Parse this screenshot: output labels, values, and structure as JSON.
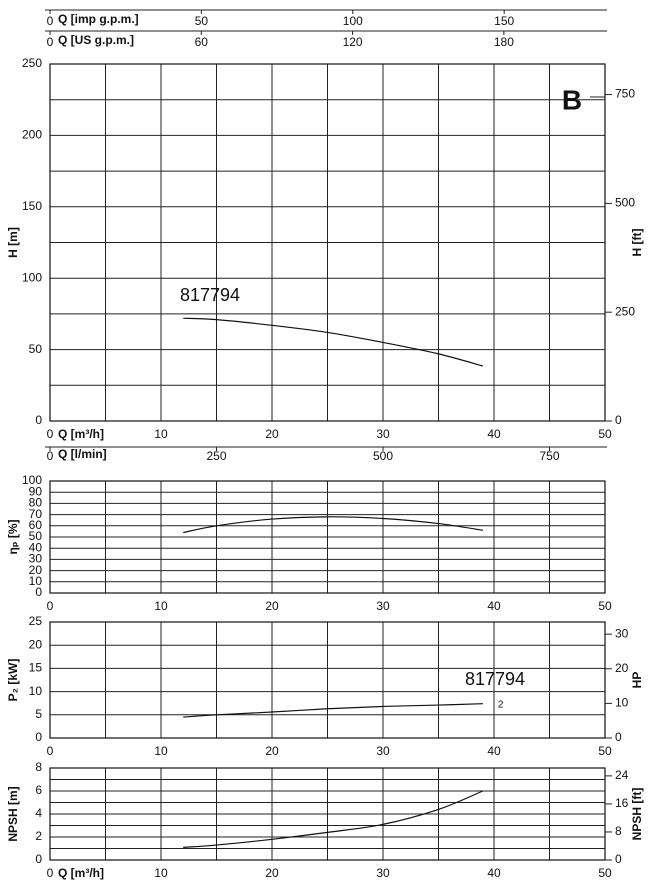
{
  "chart_data": [
    {
      "type": "line",
      "label": "B",
      "ylabel": "H [m]",
      "y2label": "H [ft]",
      "xlabel": "Q [m³/h]",
      "xlim": [
        0,
        50
      ],
      "xticks": [
        0,
        10,
        20,
        30,
        40,
        50
      ],
      "minor_xticks": [
        5,
        15,
        25,
        35,
        45
      ],
      "ylim": [
        0,
        250
      ],
      "yticks": [
        0,
        50,
        100,
        150,
        200,
        250
      ],
      "minor_yticks": [
        25,
        75,
        125,
        175,
        225
      ],
      "y2lim": [
        0,
        820.2
      ],
      "y2ticks": [
        0,
        250,
        500,
        750
      ],
      "grid": true,
      "top_axes": [
        {
          "label": "Q [imp g.p.m.]",
          "xlim": [
            0,
            183.3
          ],
          "xticks": [
            0,
            50,
            100,
            150
          ]
        },
        {
          "label": "Q [US g.p.m.]",
          "xlim": [
            0,
            220.1
          ],
          "xticks": [
            0,
            60,
            120,
            180
          ]
        }
      ],
      "bottom_axes": [
        {
          "label": "Q [l/min]",
          "xlim": [
            0,
            833.3
          ],
          "xticks": [
            0,
            250,
            500,
            750
          ]
        }
      ],
      "x": [
        12,
        15,
        20,
        25,
        30,
        35,
        39
      ],
      "series": [
        {
          "name": "817794",
          "color": "#111111",
          "values": [
            72,
            71,
            67,
            62,
            55,
            47,
            38.5
          ]
        }
      ]
    },
    {
      "type": "line",
      "ylabel": "ηₚ [%]",
      "xlim": [
        0,
        50
      ],
      "xticks": [
        0,
        10,
        20,
        30,
        40,
        50
      ],
      "minor_xticks": [
        5,
        15,
        25,
        35,
        45
      ],
      "ylim": [
        0,
        100
      ],
      "yticks": [
        0,
        10,
        20,
        30,
        40,
        50,
        60,
        70,
        80,
        90,
        100
      ],
      "grid": true,
      "x": [
        12,
        15,
        20,
        25,
        30,
        35,
        39
      ],
      "series": [
        {
          "color": "#111111",
          "values": [
            54,
            60,
            66,
            68,
            66.5,
            62,
            56
          ]
        }
      ]
    },
    {
      "type": "line",
      "ylabel": "P₂ [kW]",
      "y2label": "HP",
      "xlim": [
        0,
        50
      ],
      "xticks": [
        0,
        10,
        20,
        30,
        40,
        50
      ],
      "minor_xticks": [
        5,
        15,
        25,
        35,
        45
      ],
      "ylim": [
        0,
        25
      ],
      "yticks": [
        0,
        5,
        10,
        15,
        20,
        25
      ],
      "y2lim": [
        0,
        33.5
      ],
      "y2ticks": [
        0,
        10,
        20,
        30
      ],
      "grid": true,
      "x": [
        12,
        15,
        20,
        25,
        30,
        35,
        39
      ],
      "series": [
        {
          "name": "817794",
          "end_label": "2",
          "color": "#111111",
          "values": [
            4.5,
            5.0,
            5.6,
            6.3,
            6.8,
            7.1,
            7.4
          ]
        }
      ]
    },
    {
      "type": "line",
      "ylabel": "NPSH [m]",
      "y2label": "NPSH [ft]",
      "xlabel": "Q [m³/h]",
      "xlim": [
        0,
        50
      ],
      "xticks": [
        0,
        10,
        20,
        30,
        40,
        50
      ],
      "minor_xticks": [
        5,
        15,
        25,
        35,
        45
      ],
      "ylim": [
        0,
        8
      ],
      "yticks": [
        0,
        2,
        4,
        6,
        8
      ],
      "minor_yticks": [
        1,
        3,
        5,
        7
      ],
      "y2lim": [
        0,
        26.25
      ],
      "y2ticks": [
        0,
        8,
        16,
        24
      ],
      "grid": true,
      "x": [
        12,
        15,
        20,
        25,
        30,
        35,
        39
      ],
      "series": [
        {
          "color": "#111111",
          "values": [
            1.1,
            1.3,
            1.8,
            2.4,
            3.1,
            4.4,
            6.0
          ]
        }
      ]
    }
  ]
}
